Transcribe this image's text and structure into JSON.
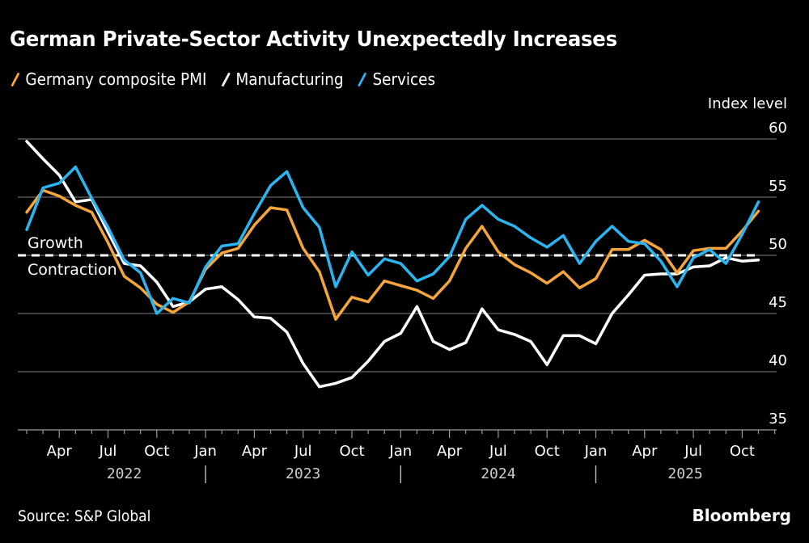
{
  "title": "German Private-Sector Activity Unexpectedly Increases",
  "source": "Source: S&P Global",
  "brand": "Bloomberg",
  "colors": {
    "background": "#000000",
    "composite": "#F5A53A",
    "manufacturing": "#FFFFFF",
    "services": "#2BB5F0",
    "grid": "#666666"
  },
  "chart_data": {
    "type": "line",
    "title": "German Private-Sector Activity Unexpectedly Increases",
    "xlabel": "",
    "ylabel": "Index level",
    "ylim": [
      35,
      60
    ],
    "yticks": [
      35,
      40,
      45,
      50,
      55,
      60
    ],
    "grid": true,
    "legend_position": "top-left",
    "x_start": "2022-02",
    "x_end": "2025-11",
    "x": [
      "2022-02",
      "2022-03",
      "2022-04",
      "2022-05",
      "2022-06",
      "2022-07",
      "2022-08",
      "2022-09",
      "2022-10",
      "2022-11",
      "2022-12",
      "2023-01",
      "2023-02",
      "2023-03",
      "2023-04",
      "2023-05",
      "2023-06",
      "2023-07",
      "2023-08",
      "2023-09",
      "2023-10",
      "2023-11",
      "2023-12",
      "2024-01",
      "2024-02",
      "2024-03",
      "2024-04",
      "2024-05",
      "2024-06",
      "2024-07",
      "2024-08",
      "2024-09",
      "2024-10",
      "2024-11",
      "2024-12",
      "2025-01",
      "2025-02",
      "2025-03",
      "2025-04",
      "2025-05",
      "2025-06",
      "2025-07",
      "2025-08",
      "2025-09",
      "2025-10",
      "2025-11"
    ],
    "month_tick_labels": [
      "Apr",
      "Jul",
      "Oct",
      "Jan",
      "Apr",
      "Jul",
      "Oct",
      "Jan",
      "Apr",
      "Jul",
      "Oct",
      "Jan",
      "Apr",
      "Jul",
      "Oct"
    ],
    "year_labels": [
      "2022",
      "2023",
      "2024",
      "2025"
    ],
    "reference_line": {
      "value": 50,
      "label_above": "Growth",
      "label_below": "Contraction"
    },
    "series": [
      {
        "name": "Germany composite PMI",
        "color": "#F5A53A",
        "values": [
          53.7,
          55.6,
          55.1,
          54.3,
          53.7,
          51.1,
          48.2,
          47.2,
          45.8,
          45.1,
          46.0,
          48.8,
          50.2,
          50.6,
          52.6,
          54.1,
          53.9,
          50.6,
          48.6,
          44.5,
          46.4,
          46.0,
          47.8,
          47.4,
          47.0,
          46.3,
          47.8,
          50.6,
          52.5,
          50.3,
          49.2,
          48.5,
          47.6,
          48.6,
          47.2,
          48.0,
          50.5,
          50.5,
          51.3,
          50.5,
          48.5,
          50.4,
          50.6,
          50.6,
          52.1,
          53.8
        ]
      },
      {
        "name": "Manufacturing",
        "color": "#FFFFFF",
        "values": [
          59.8,
          58.3,
          56.9,
          54.6,
          54.8,
          52.0,
          49.3,
          49.1,
          47.7,
          45.6,
          46.0,
          47.1,
          47.3,
          46.2,
          44.7,
          44.6,
          43.4,
          40.7,
          38.7,
          39.0,
          39.5,
          40.9,
          42.6,
          43.3,
          45.6,
          42.6,
          41.9,
          42.5,
          45.4,
          43.6,
          43.2,
          42.6,
          40.6,
          43.1,
          43.1,
          42.4,
          45.0,
          46.6,
          48.3,
          48.4,
          48.4,
          49.0,
          49.1,
          49.8,
          49.5,
          49.6
        ]
      },
      {
        "name": "Services",
        "color": "#2BB5F0",
        "values": [
          52.2,
          55.8,
          56.2,
          57.6,
          54.9,
          52.4,
          49.6,
          48.5,
          45.0,
          46.3,
          45.9,
          49.0,
          50.8,
          51.0,
          53.6,
          56.0,
          57.2,
          54.1,
          52.4,
          47.3,
          50.3,
          48.3,
          49.7,
          49.3,
          47.8,
          48.4,
          49.9,
          53.1,
          54.3,
          53.1,
          52.5,
          51.5,
          50.7,
          51.7,
          49.3,
          51.2,
          52.5,
          51.2,
          51.0,
          49.5,
          47.3,
          49.8,
          50.5,
          49.3,
          51.8,
          54.6
        ]
      }
    ]
  }
}
